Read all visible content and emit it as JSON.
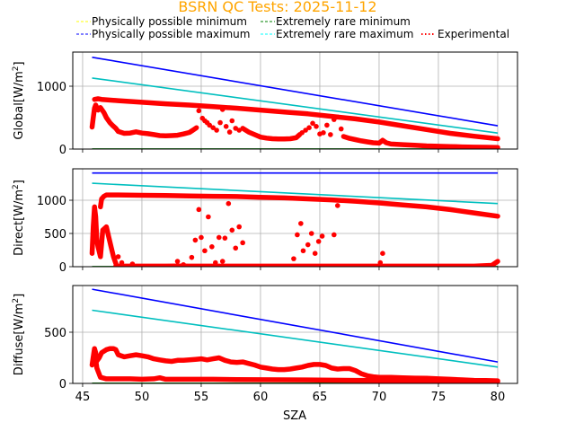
{
  "chart_data": {
    "type": "scatter",
    "title": "BSRN QC Tests: 2025-11-12",
    "title_color": "#ffa500",
    "xlabel": "SZA",
    "xlim": [
      44.17,
      81.67
    ],
    "xticks": [
      45,
      50,
      55,
      60,
      65,
      70,
      75,
      80
    ],
    "grid": true,
    "legend": {
      "placement": "top",
      "columns": 3,
      "entries": [
        {
          "label": "Physically possible minimum",
          "color": "#ffff00",
          "style": "dashed"
        },
        {
          "label": "Physically possible maximum",
          "color": "#0000ff",
          "style": "dashed"
        },
        {
          "label": "Extremely rare minimum",
          "color": "#008000",
          "style": "dashed"
        },
        {
          "label": "Extremely rare maximum",
          "color": "#00ffff",
          "style": "dashed"
        },
        {
          "label": "Experimental",
          "color": "#ff0000",
          "style": "dotted"
        }
      ]
    },
    "panels": [
      {
        "name": "global",
        "ylabel": "Global[W/m",
        "ylabel_sup": "2",
        "ylabel_end": "]",
        "ylim": [
          0,
          1543
        ],
        "yticks": [
          0,
          1000
        ],
        "series": [
          {
            "name": "Physically possible minimum",
            "color": "#ffff00",
            "x": [
              45.8,
              80
            ],
            "y": [
              -4,
              -4
            ]
          },
          {
            "name": "Physically possible maximum",
            "color": "#0000ff",
            "x": [
              45.8,
              80
            ],
            "y": [
              1460,
              370
            ]
          },
          {
            "name": "Extremely rare minimum",
            "color": "#008000",
            "x": [
              45.8,
              80
            ],
            "y": [
              2,
              2
            ]
          },
          {
            "name": "Extremely rare maximum",
            "color": "#00bfbf",
            "x": [
              45.8,
              80
            ],
            "y": [
              1130,
              255
            ]
          },
          {
            "name": "Experimental",
            "color": "#ff0000",
            "curves": [
              {
                "x": [
                  46.0,
                  46.3,
                  46.6,
                  48,
                  50,
                  52,
                  54,
                  56,
                  58,
                  60,
                  62,
                  64,
                  66,
                  68,
                  70,
                  72,
                  74,
                  76,
                  78,
                  80
                ],
                "y": [
                  790,
                  800,
                  790,
                  770,
                  745,
                  720,
                  700,
                  675,
                  650,
                  620,
                  590,
                  560,
                  520,
                  480,
                  430,
                  370,
                  310,
                  250,
                  205,
                  165
                ]
              },
              {
                "x": [
                  45.8,
                  45.9,
                  46.0,
                  46.1,
                  46.3,
                  46.5,
                  46.8,
                  47.0,
                  47.3,
                  47.5,
                  47.8,
                  48.0,
                  48.5,
                  49.0,
                  49.5,
                  50.0,
                  50.5,
                  51.0,
                  51.5,
                  52.0,
                  52.5,
                  53.0,
                  53.5,
                  54.0,
                  54.3,
                  54.6
                ],
                "y": [
                  350,
                  500,
                  650,
                  700,
                  620,
                  660,
                  580,
                  500,
                  420,
                  380,
                  330,
                  280,
                  250,
                  255,
                  275,
                  255,
                  245,
                  230,
                  215,
                  210,
                  215,
                  220,
                  240,
                  265,
                  300,
                  340
                ]
              },
              {
                "x": [
                  58.5,
                  59,
                  59.5,
                  60,
                  60.5,
                  61,
                  61.5,
                  62,
                  62.5,
                  63,
                  63.3
                ],
                "y": [
                  330,
                  270,
                  230,
                  190,
                  175,
                  165,
                  160,
                  160,
                  165,
                  180,
                  230
                ]
              },
              {
                "x": [
                  67.0,
                  67.5,
                  68,
                  68.5,
                  69,
                  69.5,
                  70,
                  70.3,
                  70.6,
                  71,
                  72,
                  73,
                  74,
                  75,
                  76,
                  77,
                  78,
                  79,
                  80
                ],
                "y": [
                  200,
                  170,
                  150,
                  130,
                  115,
                  100,
                  95,
                  140,
                  100,
                  80,
                  70,
                  60,
                  50,
                  45,
                  40,
                  35,
                  30,
                  28,
                  25
                ]
              }
            ],
            "scatter": {
              "x": [
                54.8,
                55.1,
                55.3,
                55.5,
                55.7,
                56.0,
                56.3,
                56.6,
                56.8,
                57.1,
                57.4,
                57.6,
                57.9,
                58.2,
                63.5,
                63.8,
                64.1,
                64.4,
                64.7,
                65.0,
                65.3,
                65.6,
                65.9,
                66.2,
                66.5,
                66.8
              ],
              "y": [
                610,
                490,
                450,
                420,
                380,
                340,
                300,
                420,
                630,
                360,
                270,
                450,
                330,
                300,
                260,
                300,
                340,
                410,
                360,
                240,
                260,
                380,
                230,
                470,
                510,
                320
              ]
            }
          }
        ]
      },
      {
        "name": "direct",
        "ylabel": "Direct[W/m",
        "ylabel_sup": "2",
        "ylabel_end": "]",
        "ylim": [
          0,
          1473
        ],
        "yticks": [
          0,
          500,
          1000
        ],
        "series": [
          {
            "name": "Physically possible minimum",
            "color": "#ffff00",
            "x": [
              45.8,
              80
            ],
            "y": [
              -4,
              -4
            ]
          },
          {
            "name": "Physically possible maximum",
            "color": "#0000ff",
            "x": [
              45.8,
              80
            ],
            "y": [
              1410,
              1410
            ]
          },
          {
            "name": "Extremely rare minimum",
            "color": "#008000",
            "x": [
              45.8,
              80
            ],
            "y": [
              2,
              2
            ]
          },
          {
            "name": "Extremely rare maximum",
            "color": "#00bfbf",
            "x": [
              45.8,
              80
            ],
            "y": [
              1255,
              950
            ]
          },
          {
            "name": "Experimental",
            "color": "#ff0000",
            "curves": [
              {
                "x": [
                  46.5,
                  46.6,
                  46.8,
                  47.0,
                  48,
                  50,
                  52,
                  54,
                  56,
                  58,
                  60,
                  62,
                  64,
                  66,
                  68,
                  70,
                  72,
                  74,
                  76,
                  78,
                  80
                ],
                "y": [
                  900,
                  1020,
                  1060,
                  1080,
                  1080,
                  1075,
                  1070,
                  1065,
                  1060,
                  1055,
                  1045,
                  1035,
                  1020,
                  1005,
                  985,
                  960,
                  930,
                  900,
                  860,
                  810,
                  760
                ]
              },
              {
                "x": [
                  45.8,
                  45.9,
                  46.0,
                  46.1,
                  46.2,
                  46.3,
                  46.5,
                  46.7,
                  47.0,
                  47.2,
                  47.4,
                  47.6,
                  47.8
                ],
                "y": [
                  200,
                  600,
                  900,
                  750,
                  400,
                  300,
                  150,
                  550,
                  600,
                  450,
                  300,
                  150,
                  50
                ]
              },
              {
                "x": [
                  47.8,
                  48.5,
                  50,
                  52,
                  53,
                  54,
                  56,
                  58,
                  60,
                  62,
                  63,
                  64,
                  66,
                  68,
                  70,
                  72,
                  74,
                  76,
                  78,
                  79.5,
                  80
                ],
                "y": [
                  10,
                  8,
                  8,
                  8,
                  10,
                  8,
                  8,
                  8,
                  8,
                  8,
                  8,
                  8,
                  8,
                  8,
                  8,
                  8,
                  8,
                  8,
                  8,
                  20,
                  80
                ]
              }
            ],
            "scatter": {
              "x": [
                48.0,
                48.3,
                49.2,
                53.0,
                53.5,
                54.2,
                54.5,
                54.8,
                55.0,
                55.3,
                55.6,
                55.9,
                56.2,
                56.5,
                56.8,
                57.0,
                57.3,
                57.6,
                57.9,
                58.2,
                58.5,
                62.8,
                63.1,
                63.4,
                63.6,
                64.0,
                64.3,
                64.6,
                64.9,
                65.2,
                66.2,
                66.5,
                70.1,
                70.3
              ],
              "y": [
                150,
                60,
                40,
                80,
                30,
                140,
                400,
                860,
                440,
                240,
                750,
                300,
                60,
                440,
                80,
                430,
                950,
                550,
                280,
                600,
                360,
                120,
                480,
                650,
                240,
                330,
                500,
                200,
                380,
                460,
                480,
                920,
                60,
                200
              ]
            }
          }
        ]
      },
      {
        "name": "diffuse",
        "ylabel": "Diffuse[W/m",
        "ylabel_sup": "2",
        "ylabel_end": "]",
        "ylim": [
          0,
          956
        ],
        "yticks": [
          0,
          500
        ],
        "series": [
          {
            "name": "Physically possible minimum",
            "color": "#ffff00",
            "x": [
              45.8,
              80
            ],
            "y": [
              -3,
              -3
            ]
          },
          {
            "name": "Physically possible maximum",
            "color": "#0000ff",
            "x": [
              45.8,
              80
            ],
            "y": [
              920,
              210
            ]
          },
          {
            "name": "Extremely rare minimum",
            "color": "#008000",
            "x": [
              45.8,
              80
            ],
            "y": [
              2,
              2
            ]
          },
          {
            "name": "Extremely rare maximum",
            "color": "#00bfbf",
            "x": [
              45.8,
              80
            ],
            "y": [
              715,
              160
            ]
          },
          {
            "name": "Experimental",
            "color": "#ff0000",
            "curves": [
              {
                "x": [
                  45.8,
                  45.9,
                  46.0,
                  46.1,
                  46.2,
                  46.4,
                  46.6,
                  47.0,
                  47.3,
                  47.6,
                  47.8,
                  48.0,
                  48.5,
                  49,
                  49.5,
                  50,
                  50.5,
                  51,
                  51.5,
                  52,
                  52.5,
                  53,
                  53.5,
                  54,
                  54.5,
                  55,
                  55.5,
                  56,
                  56.5,
                  57,
                  57.5,
                  58,
                  58.5,
                  59,
                  59.5,
                  60,
                  60.5,
                  61,
                  61.5,
                  62,
                  62.5,
                  63,
                  63.5,
                  64,
                  64.5,
                  65,
                  65.5,
                  66,
                  66.5,
                  67,
                  67.5,
                  68,
                  68.5,
                  69,
                  69.5,
                  70,
                  71,
                  72,
                  73,
                  74,
                  75,
                  76,
                  77,
                  78,
                  79,
                  80
                ],
                "y": [
                  180,
                  260,
                  340,
                  300,
                  220,
                  250,
                  300,
                  330,
                  340,
                  340,
                  330,
                  280,
                  260,
                  270,
                  280,
                  270,
                  260,
                  240,
                  230,
                  220,
                  215,
                  225,
                  225,
                  230,
                  235,
                  240,
                  230,
                  240,
                  250,
                  225,
                  210,
                  205,
                  210,
                  195,
                  180,
                  160,
                  150,
                  140,
                  135,
                  135,
                  140,
                  150,
                  160,
                  175,
                  185,
                  185,
                  175,
                  150,
                  140,
                  145,
                  145,
                  125,
                  95,
                  75,
                  65,
                  60,
                  60,
                  55,
                  52,
                  50,
                  45,
                  40,
                  35,
                  30,
                  28,
                  25
                ]
              },
              {
                "x": [
                  46.0,
                  46.2,
                  46.5,
                  47,
                  48,
                  49,
                  50,
                  51,
                  51.5,
                  52,
                  53,
                  54,
                  55,
                  56,
                  58,
                  60,
                  62,
                  64,
                  66,
                  68,
                  70,
                  72,
                  74,
                  76,
                  78,
                  80
                ],
                "y": [
                  320,
                  150,
                  60,
                  45,
                  45,
                  45,
                  40,
                  45,
                  55,
                  40,
                  40,
                  40,
                  40,
                  40,
                  38,
                  36,
                  35,
                  34,
                  32,
                  30,
                  28,
                  27,
                  25,
                  22,
                  20,
                  18
                ]
              }
            ],
            "scatter": {
              "x": [],
              "y": []
            }
          }
        ]
      }
    ]
  }
}
